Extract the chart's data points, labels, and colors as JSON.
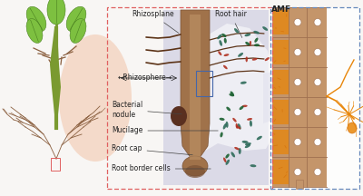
{
  "bg_color": "#f0eeec",
  "fig_width": 4.0,
  "fig_height": 2.16,
  "dpi": 100,
  "labels": {
    "rhizosplane": "Rhizosplane",
    "root_hair": "Root hair",
    "rhizosphere": "←Rhizosphere→",
    "bacterial_nodule": "Bacterial\nnodule",
    "mucilage": "Mucilage",
    "root_cap": "Root cap",
    "root_border_cells": "Root border cells",
    "amf": "AMF"
  },
  "colors": {
    "root_brown": "#A0724A",
    "root_brown_dark": "#7A5235",
    "root_hair_brown": "#5C3317",
    "rhizosphere_stripe": "#C49A6C",
    "pink_bg": "#F2C4A8",
    "lavender_bg": "#B8B8D8",
    "bacteria_teal": "#2E6B5A",
    "bacteria_red": "#B03020",
    "bacteria_darkgreen": "#1A6030",
    "nodule_dark": "#5A3020",
    "amf_orange": "#E8860A",
    "amf_orange2": "#D4700A",
    "amf_tan": "#C4956A",
    "cell_wall_dark": "#A07050",
    "cell_wall_light": "#D4B080",
    "leaf_light": "#7DC040",
    "leaf_dark": "#4A8020",
    "stem_green": "#7A9A30",
    "root_tree": "#8B6040",
    "border_pink": "#E06060",
    "border_blue": "#6688BB",
    "text_color": "#222222",
    "white": "#FFFFFF",
    "blue_box": "#4466AA",
    "bg_white": "#F8F6F4"
  }
}
